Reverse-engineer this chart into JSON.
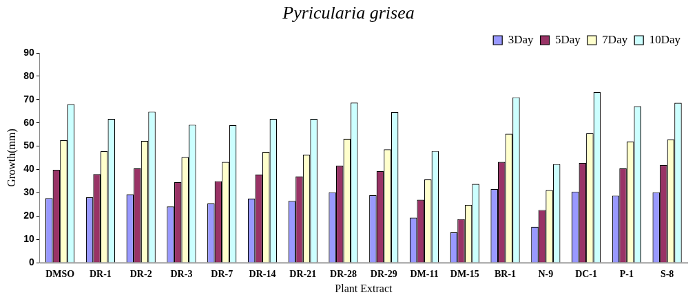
{
  "chart_data": {
    "type": "bar",
    "title": "Pyricularia grisea",
    "xlabel": "Plant Extract",
    "ylabel": "Growth(mm)",
    "categories": [
      "DMSO",
      "DR-1",
      "DR-2",
      "DR-3",
      "DR-7",
      "DR-14",
      "DR-21",
      "DR-28",
      "DR-29",
      "DM-11",
      "DM-15",
      "BR-1",
      "N-9",
      "DC-1",
      "P-1",
      "S-8"
    ],
    "series": [
      {
        "name": "3Day",
        "color": "#9999ff",
        "values": [
          27.7,
          28,
          29.3,
          24.1,
          25.4,
          27.5,
          26.5,
          30.2,
          29,
          19.3,
          13,
          31.6,
          15.4,
          30.5,
          28.8,
          30.2
        ]
      },
      {
        "name": "5Day",
        "color": "#993366",
        "values": [
          39.8,
          38,
          40.5,
          34.6,
          35,
          37.8,
          37,
          41.6,
          39.3,
          27,
          18.7,
          43.2,
          22.6,
          42.8,
          40.5,
          41.9
        ]
      },
      {
        "name": "7Day",
        "color": "#ffffcc",
        "values": [
          52.5,
          47.8,
          52.3,
          45.3,
          43.2,
          47.6,
          46.3,
          53.2,
          48.6,
          35.7,
          24.8,
          55.3,
          31.1,
          55.5,
          52,
          52.9
        ]
      },
      {
        "name": "10Day",
        "color": "#ccffff",
        "values": [
          68,
          61.7,
          64.8,
          59.2,
          59,
          61.7,
          61.7,
          68.7,
          64.6,
          47.9,
          33.8,
          71,
          42.3,
          73.2,
          67.1,
          68.6
        ]
      }
    ],
    "ylim": [
      0,
      90
    ],
    "yticks": [
      0,
      10,
      20,
      30,
      40,
      50,
      60,
      70,
      80,
      90
    ],
    "grid": false,
    "legend": "top right"
  }
}
